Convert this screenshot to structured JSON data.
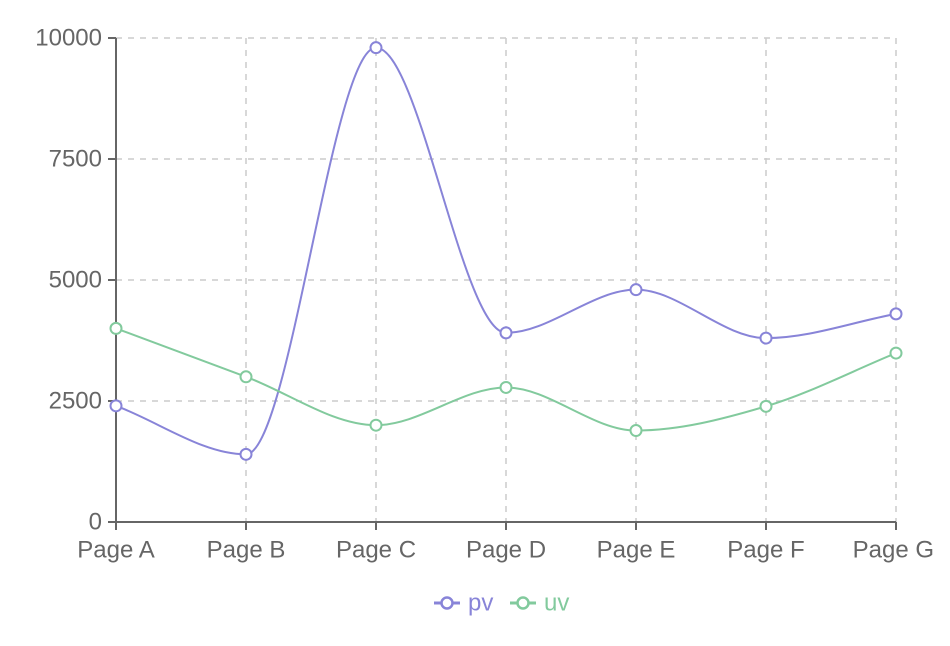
{
  "chart_data": {
    "type": "line",
    "categories": [
      "Page A",
      "Page B",
      "Page C",
      "Page D",
      "Page E",
      "Page F",
      "Page G"
    ],
    "series": [
      {
        "name": "pv",
        "color": "#8884d8",
        "values": [
          2400,
          1398,
          9800,
          3908,
          4800,
          3800,
          4300
        ]
      },
      {
        "name": "uv",
        "color": "#82ca9d",
        "values": [
          4000,
          3000,
          2000,
          2780,
          1890,
          2390,
          3490
        ]
      }
    ],
    "ylim": [
      0,
      10000
    ],
    "yticks": [
      0,
      2500,
      5000,
      7500,
      10000
    ],
    "grid": true,
    "curve": "smooth",
    "legend_position": "bottom-center"
  }
}
